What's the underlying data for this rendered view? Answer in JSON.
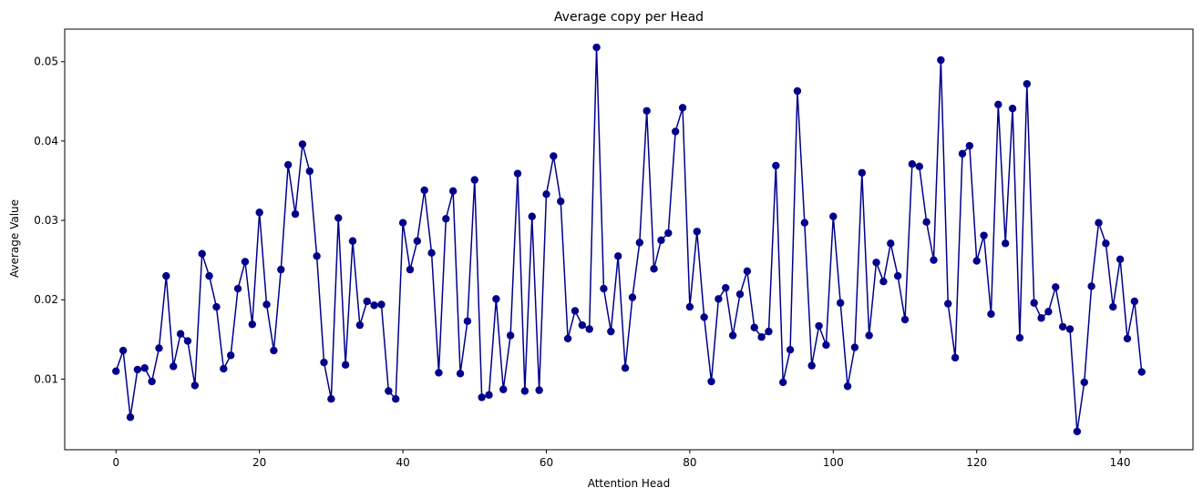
{
  "chart_data": {
    "type": "line",
    "title": "Average copy per Head",
    "xlabel": "Attention Head",
    "ylabel": "Average Value",
    "xlim": [
      -7.15,
      150.15
    ],
    "ylim": [
      0.0011,
      0.0541
    ],
    "xticks": [
      0,
      20,
      40,
      60,
      80,
      100,
      120,
      140
    ],
    "yticks": [
      0.01,
      0.02,
      0.03,
      0.04,
      0.05
    ],
    "ytick_labels": [
      "0.01",
      "0.02",
      "0.03",
      "0.04",
      "0.05"
    ],
    "grid": false,
    "color": "#00008b",
    "series": [
      {
        "values": [
          0.011,
          0.0136,
          0.0052,
          0.0112,
          0.0114,
          0.0097,
          0.0139,
          0.023,
          0.0116,
          0.0157,
          0.0148,
          0.0092,
          0.0258,
          0.023,
          0.0191,
          0.0113,
          0.013,
          0.0214,
          0.0248,
          0.0169,
          0.031,
          0.0194,
          0.0136,
          0.0238,
          0.037,
          0.0308,
          0.0396,
          0.0362,
          0.0255,
          0.0121,
          0.0075,
          0.0303,
          0.0118,
          0.0274,
          0.0168,
          0.0198,
          0.0193,
          0.0194,
          0.0085,
          0.0075,
          0.0297,
          0.0238,
          0.0274,
          0.0338,
          0.0259,
          0.0108,
          0.0302,
          0.0337,
          0.0107,
          0.0173,
          0.0351,
          0.0077,
          0.008,
          0.0201,
          0.0087,
          0.0155,
          0.0359,
          0.0085,
          0.0305,
          0.0086,
          0.0333,
          0.0381,
          0.0324,
          0.0151,
          0.0186,
          0.0168,
          0.0163,
          0.0518,
          0.0214,
          0.016,
          0.0255,
          0.0114,
          0.0203,
          0.0272,
          0.0438,
          0.0239,
          0.0275,
          0.0284,
          0.0412,
          0.0442,
          0.0191,
          0.0286,
          0.0178,
          0.0097,
          0.0201,
          0.0215,
          0.0155,
          0.0207,
          0.0236,
          0.0165,
          0.0153,
          0.016,
          0.0369,
          0.0096,
          0.0137,
          0.0463,
          0.0297,
          0.0117,
          0.0167,
          0.0143,
          0.0305,
          0.0196,
          0.0091,
          0.014,
          0.036,
          0.0155,
          0.0247,
          0.0223,
          0.0271,
          0.023,
          0.0175,
          0.0371,
          0.0368,
          0.0298,
          0.025,
          0.0502,
          0.0195,
          0.0127,
          0.0384,
          0.0394,
          0.0249,
          0.0281,
          0.0182,
          0.0446,
          0.0271,
          0.0441,
          0.0152,
          0.0472,
          0.0196,
          0.0177,
          0.0185,
          0.0216,
          0.0166,
          0.0163,
          0.0034,
          0.0096,
          0.0217,
          0.0297,
          0.0271,
          0.0191,
          0.0251,
          0.0151,
          0.0198,
          0.0109
        ]
      }
    ]
  }
}
